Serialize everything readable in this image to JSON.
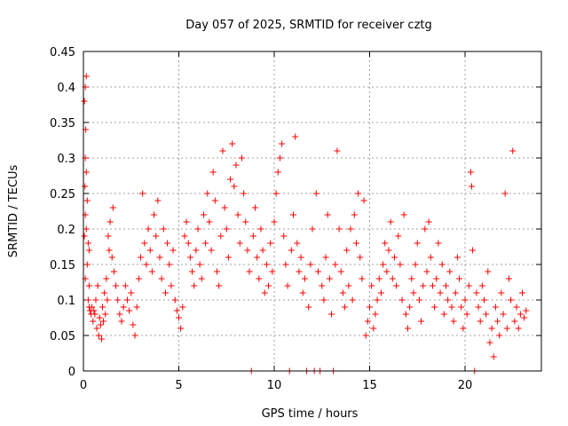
{
  "chart_data": {
    "type": "scatter",
    "title": "Day 057 of 2025, SRMTID for receiver cztg",
    "xlabel": "GPS time / hours",
    "ylabel": "SRMTID / TECUs",
    "xlim": [
      0,
      24
    ],
    "ylim": [
      0,
      0.45
    ],
    "xticks": [
      0,
      5,
      10,
      15,
      20
    ],
    "xtick_labels": [
      "0",
      "5",
      "10",
      "15",
      "20"
    ],
    "yticks": [
      0,
      0.05,
      0.1,
      0.15,
      0.2,
      0.25,
      0.3,
      0.35,
      0.4,
      0.45
    ],
    "ytick_labels": [
      "0",
      "0.05",
      "0.1",
      "0.15",
      "0.2",
      "0.25",
      "0.3",
      "0.35",
      "0.4",
      "0.45"
    ],
    "grid": true,
    "marker": "+",
    "color": "#ff0000",
    "series": [
      {
        "name": "SRMTID",
        "points": [
          [
            0.05,
            0.38
          ],
          [
            0.1,
            0.4
          ],
          [
            0.15,
            0.415
          ],
          [
            0.12,
            0.34
          ],
          [
            0.1,
            0.3
          ],
          [
            0.15,
            0.28
          ],
          [
            0.08,
            0.26
          ],
          [
            0.2,
            0.24
          ],
          [
            0.1,
            0.22
          ],
          [
            0.15,
            0.2
          ],
          [
            0.05,
            0.19
          ],
          [
            0.25,
            0.18
          ],
          [
            0.3,
            0.17
          ],
          [
            0.2,
            0.15
          ],
          [
            0.1,
            0.13
          ],
          [
            0.3,
            0.12
          ],
          [
            0.25,
            0.1
          ],
          [
            0.3,
            0.09
          ],
          [
            0.35,
            0.085
          ],
          [
            0.4,
            0.08
          ],
          [
            0.45,
            0.09
          ],
          [
            0.5,
            0.07
          ],
          [
            0.55,
            0.085
          ],
          [
            0.6,
            0.08
          ],
          [
            0.65,
            0.1
          ],
          [
            0.7,
            0.06
          ],
          [
            0.75,
            0.12
          ],
          [
            0.8,
            0.05
          ],
          [
            0.85,
            0.075
          ],
          [
            0.9,
            0.065
          ],
          [
            0.95,
            0.045
          ],
          [
            1.0,
            0.09
          ],
          [
            1.05,
            0.07
          ],
          [
            1.1,
            0.11
          ],
          [
            1.15,
            0.08
          ],
          [
            1.2,
            0.13
          ],
          [
            1.25,
            0.1
          ],
          [
            1.3,
            0.19
          ],
          [
            1.35,
            0.17
          ],
          [
            1.4,
            0.21
          ],
          [
            1.5,
            0.16
          ],
          [
            1.55,
            0.23
          ],
          [
            1.6,
            0.14
          ],
          [
            1.7,
            0.12
          ],
          [
            1.8,
            0.1
          ],
          [
            1.9,
            0.08
          ],
          [
            2.0,
            0.07
          ],
          [
            2.1,
            0.09
          ],
          [
            2.2,
            0.12
          ],
          [
            2.3,
            0.1
          ],
          [
            2.4,
            0.085
          ],
          [
            2.5,
            0.11
          ],
          [
            2.6,
            0.065
          ],
          [
            2.7,
            0.05
          ],
          [
            2.8,
            0.09
          ],
          [
            2.9,
            0.13
          ],
          [
            3.0,
            0.16
          ],
          [
            3.1,
            0.25
          ],
          [
            3.2,
            0.18
          ],
          [
            3.3,
            0.15
          ],
          [
            3.4,
            0.2
          ],
          [
            3.5,
            0.17
          ],
          [
            3.6,
            0.14
          ],
          [
            3.7,
            0.22
          ],
          [
            3.8,
            0.19
          ],
          [
            3.9,
            0.24
          ],
          [
            4.0,
            0.16
          ],
          [
            4.1,
            0.13
          ],
          [
            4.2,
            0.2
          ],
          [
            4.3,
            0.11
          ],
          [
            4.4,
            0.18
          ],
          [
            4.5,
            0.15
          ],
          [
            4.6,
            0.12
          ],
          [
            4.7,
            0.17
          ],
          [
            4.8,
            0.1
          ],
          [
            4.9,
            0.085
          ],
          [
            5.0,
            0.075
          ],
          [
            5.1,
            0.06
          ],
          [
            5.2,
            0.09
          ],
          [
            5.3,
            0.19
          ],
          [
            5.4,
            0.21
          ],
          [
            5.5,
            0.18
          ],
          [
            5.6,
            0.16
          ],
          [
            5.7,
            0.14
          ],
          [
            5.8,
            0.12
          ],
          [
            5.9,
            0.17
          ],
          [
            6.0,
            0.2
          ],
          [
            6.1,
            0.15
          ],
          [
            6.2,
            0.13
          ],
          [
            6.3,
            0.22
          ],
          [
            6.4,
            0.18
          ],
          [
            6.5,
            0.25
          ],
          [
            6.6,
            0.21
          ],
          [
            6.7,
            0.17
          ],
          [
            6.8,
            0.28
          ],
          [
            6.9,
            0.24
          ],
          [
            7.0,
            0.14
          ],
          [
            7.1,
            0.12
          ],
          [
            7.2,
            0.19
          ],
          [
            7.3,
            0.31
          ],
          [
            7.4,
            0.23
          ],
          [
            7.5,
            0.2
          ],
          [
            7.6,
            0.16
          ],
          [
            7.7,
            0.27
          ],
          [
            7.8,
            0.32
          ],
          [
            7.9,
            0.26
          ],
          [
            8.0,
            0.29
          ],
          [
            8.1,
            0.22
          ],
          [
            8.2,
            0.18
          ],
          [
            8.3,
            0.3
          ],
          [
            8.4,
            0.25
          ],
          [
            8.5,
            0.21
          ],
          [
            8.6,
            0.17
          ],
          [
            8.7,
            0.14
          ],
          [
            8.8,
            0.0
          ],
          [
            8.9,
            0.19
          ],
          [
            9.0,
            0.23
          ],
          [
            9.1,
            0.16
          ],
          [
            9.2,
            0.13
          ],
          [
            9.3,
            0.2
          ],
          [
            9.4,
            0.17
          ],
          [
            9.5,
            0.11
          ],
          [
            9.6,
            0.15
          ],
          [
            9.7,
            0.12
          ],
          [
            9.8,
            0.18
          ],
          [
            9.9,
            0.14
          ],
          [
            10.0,
            0.21
          ],
          [
            10.1,
            0.25
          ],
          [
            10.2,
            0.28
          ],
          [
            10.3,
            0.3
          ],
          [
            10.4,
            0.32
          ],
          [
            10.5,
            0.19
          ],
          [
            10.6,
            0.15
          ],
          [
            10.7,
            0.12
          ],
          [
            10.8,
            0.0
          ],
          [
            10.9,
            0.17
          ],
          [
            11.0,
            0.22
          ],
          [
            11.1,
            0.33
          ],
          [
            11.2,
            0.18
          ],
          [
            11.3,
            0.14
          ],
          [
            11.4,
            0.16
          ],
          [
            11.5,
            0.11
          ],
          [
            11.6,
            0.13
          ],
          [
            11.7,
            0.0
          ],
          [
            11.8,
            0.09
          ],
          [
            11.9,
            0.15
          ],
          [
            12.0,
            0.2
          ],
          [
            12.1,
            0.0
          ],
          [
            12.2,
            0.25
          ],
          [
            12.3,
            0.14
          ],
          [
            12.4,
            0.0
          ],
          [
            12.5,
            0.12
          ],
          [
            12.6,
            0.1
          ],
          [
            12.7,
            0.16
          ],
          [
            12.8,
            0.22
          ],
          [
            12.9,
            0.13
          ],
          [
            13.0,
            0.08
          ],
          [
            13.1,
            0.0
          ],
          [
            13.2,
            0.15
          ],
          [
            13.3,
            0.31
          ],
          [
            13.4,
            0.2
          ],
          [
            13.5,
            0.14
          ],
          [
            13.6,
            0.11
          ],
          [
            13.7,
            0.09
          ],
          [
            13.8,
            0.17
          ],
          [
            13.9,
            0.12
          ],
          [
            14.0,
            0.2
          ],
          [
            14.1,
            0.1
          ],
          [
            14.2,
            0.22
          ],
          [
            14.3,
            0.18
          ],
          [
            14.4,
            0.25
          ],
          [
            14.5,
            0.16
          ],
          [
            14.6,
            0.13
          ],
          [
            14.7,
            0.24
          ],
          [
            14.8,
            0.05
          ],
          [
            14.9,
            0.07
          ],
          [
            15.0,
            0.09
          ],
          [
            15.1,
            0.12
          ],
          [
            15.2,
            0.06
          ],
          [
            15.3,
            0.08
          ],
          [
            15.4,
            0.1
          ],
          [
            15.5,
            0.13
          ],
          [
            15.6,
            0.11
          ],
          [
            15.7,
            0.15
          ],
          [
            15.8,
            0.18
          ],
          [
            15.9,
            0.14
          ],
          [
            16.0,
            0.17
          ],
          [
            16.1,
            0.21
          ],
          [
            16.2,
            0.13
          ],
          [
            16.3,
            0.16
          ],
          [
            16.4,
            0.12
          ],
          [
            16.5,
            0.19
          ],
          [
            16.6,
            0.15
          ],
          [
            16.7,
            0.1
          ],
          [
            16.8,
            0.22
          ],
          [
            16.9,
            0.08
          ],
          [
            17.0,
            0.06
          ],
          [
            17.1,
            0.09
          ],
          [
            17.2,
            0.13
          ],
          [
            17.3,
            0.11
          ],
          [
            17.4,
            0.15
          ],
          [
            17.5,
            0.18
          ],
          [
            17.6,
            0.1
          ],
          [
            17.7,
            0.07
          ],
          [
            17.8,
            0.12
          ],
          [
            17.9,
            0.2
          ],
          [
            18.0,
            0.14
          ],
          [
            18.1,
            0.21
          ],
          [
            18.2,
            0.16
          ],
          [
            18.3,
            0.12
          ],
          [
            18.4,
            0.09
          ],
          [
            18.5,
            0.13
          ],
          [
            18.6,
            0.18
          ],
          [
            18.7,
            0.11
          ],
          [
            18.8,
            0.15
          ],
          [
            18.9,
            0.08
          ],
          [
            19.0,
            0.12
          ],
          [
            19.1,
            0.1
          ],
          [
            19.2,
            0.14
          ],
          [
            19.3,
            0.09
          ],
          [
            19.4,
            0.07
          ],
          [
            19.5,
            0.11
          ],
          [
            19.6,
            0.16
          ],
          [
            19.7,
            0.13
          ],
          [
            19.8,
            0.09
          ],
          [
            19.9,
            0.06
          ],
          [
            20.0,
            0.1
          ],
          [
            20.1,
            0.08
          ],
          [
            20.2,
            0.12
          ],
          [
            20.3,
            0.28
          ],
          [
            20.35,
            0.26
          ],
          [
            20.4,
            0.17
          ],
          [
            20.5,
            0.0
          ],
          [
            20.6,
            0.11
          ],
          [
            20.7,
            0.09
          ],
          [
            20.8,
            0.07
          ],
          [
            20.9,
            0.12
          ],
          [
            21.0,
            0.1
          ],
          [
            21.1,
            0.08
          ],
          [
            21.2,
            0.14
          ],
          [
            21.3,
            0.04
          ],
          [
            21.4,
            0.06
          ],
          [
            21.5,
            0.02
          ],
          [
            21.6,
            0.09
          ],
          [
            21.7,
            0.07
          ],
          [
            21.8,
            0.05
          ],
          [
            21.9,
            0.11
          ],
          [
            22.0,
            0.08
          ],
          [
            22.1,
            0.25
          ],
          [
            22.2,
            0.06
          ],
          [
            22.3,
            0.13
          ],
          [
            22.4,
            0.1
          ],
          [
            22.5,
            0.31
          ],
          [
            22.6,
            0.07
          ],
          [
            22.7,
            0.09
          ],
          [
            22.8,
            0.06
          ],
          [
            22.9,
            0.08
          ],
          [
            23.0,
            0.11
          ],
          [
            23.1,
            0.075
          ],
          [
            23.2,
            0.085
          ]
        ]
      }
    ]
  }
}
